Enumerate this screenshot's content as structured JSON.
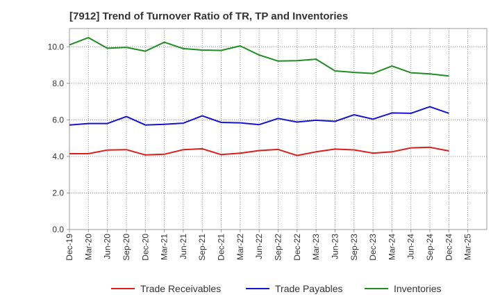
{
  "chart_data": {
    "type": "line",
    "title": "[7912]  Trend of Turnover Ratio of TR, TP and Inventories",
    "xlabel": "",
    "ylabel": "",
    "ylim": [
      0,
      11
    ],
    "yticks": [
      0.0,
      2.0,
      4.0,
      6.0,
      8.0,
      10.0
    ],
    "ytick_labels": [
      "0.0",
      "2.0",
      "4.0",
      "6.0",
      "8.0",
      "10.0"
    ],
    "x_tick_labels": [
      "Dec-19",
      "Mar-20",
      "Jun-20",
      "Sep-20",
      "Dec-20",
      "Mar-21",
      "Jun-21",
      "Sep-21",
      "Dec-21",
      "Mar-22",
      "Jun-22",
      "Sep-22",
      "Dec-22",
      "Mar-23",
      "Jun-23",
      "Sep-23",
      "Dec-23",
      "Mar-24",
      "Jun-24",
      "Sep-24",
      "Dec-24",
      "Mar-25"
    ],
    "x": [
      "Dec-19",
      "Mar-20",
      "Jun-20",
      "Sep-20",
      "Dec-20",
      "Mar-21",
      "Jun-21",
      "Sep-21",
      "Dec-21",
      "Mar-22",
      "Jun-22",
      "Sep-22",
      "Dec-22",
      "Mar-23",
      "Jun-23",
      "Sep-23",
      "Dec-23",
      "Mar-24",
      "Jun-24",
      "Sep-24",
      "Dec-24"
    ],
    "grid": true,
    "legend_position": "bottom",
    "series": [
      {
        "name": "Trade Receivables",
        "color": "#dd1c1c",
        "values": [
          4.15,
          4.15,
          4.35,
          4.37,
          4.08,
          4.12,
          4.37,
          4.42,
          4.1,
          4.18,
          4.32,
          4.38,
          4.05,
          4.25,
          4.4,
          4.36,
          4.18,
          4.25,
          4.47,
          4.5,
          4.3
        ]
      },
      {
        "name": "Trade Payables",
        "color": "#1414cc",
        "values": [
          5.72,
          5.8,
          5.8,
          6.18,
          5.72,
          5.76,
          5.82,
          6.22,
          5.86,
          5.84,
          5.74,
          6.08,
          5.88,
          5.98,
          5.92,
          6.28,
          6.04,
          6.38,
          6.36,
          6.72,
          6.36
        ]
      },
      {
        "name": "Inventories",
        "color": "#228b22",
        "values": [
          10.1,
          10.5,
          9.92,
          9.97,
          9.76,
          10.25,
          9.9,
          9.82,
          9.8,
          10.05,
          9.55,
          9.22,
          9.24,
          9.32,
          8.68,
          8.6,
          8.54,
          8.95,
          8.58,
          8.52,
          8.4
        ]
      }
    ]
  }
}
